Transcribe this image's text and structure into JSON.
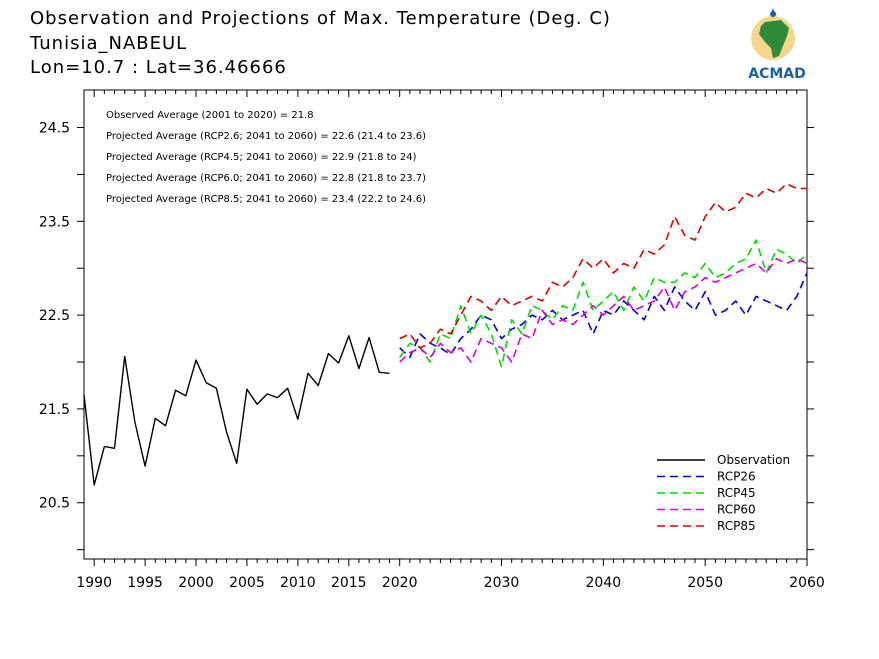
{
  "header": {
    "title_line1": "Observation and Projections of Max. Temperature (Deg. C)",
    "title_line2": "Tunisia_NABEUL",
    "title_line3": "Lon=10.7 : Lat=36.46666"
  },
  "logo": {
    "name": "ACMAD",
    "icon": "africa-logo-icon",
    "color": "#1a5fa8"
  },
  "stats": [
    "Observed Average (2001 to 2020) = 21.8",
    "Projected Average (RCP2.6; 2041 to 2060) = 22.6 (21.4 to 23.6)",
    "Projected Average (RCP4.5; 2041 to 2060) = 22.9 (21.8 to 24)",
    "Projected Average (RCP6.0; 2041 to 2060) = 22.8 (21.8 to 23.7)",
    "Projected Average (RCP8.5; 2041 to 2060) = 23.4 (22.2 to 24.6)"
  ],
  "chart_data": {
    "type": "line",
    "x_ticks": [
      1990,
      1995,
      2000,
      2005,
      2010,
      2015,
      2020,
      2030,
      2040,
      2050,
      2060
    ],
    "y_ticks": [
      20.5,
      21.5,
      22.5,
      23.5,
      24.5
    ],
    "ylim": [
      19.9,
      24.9
    ],
    "grid": false,
    "legend_position": "bottom-right",
    "series": [
      {
        "name": "Observation",
        "color": "#000000",
        "dashed": false,
        "x": [
          1989,
          1990,
          1991,
          1992,
          1993,
          1994,
          1995,
          1996,
          1997,
          1998,
          1999,
          2000,
          2001,
          2002,
          2003,
          2004,
          2005,
          2006,
          2007,
          2008,
          2009,
          2010,
          2011,
          2012,
          2013,
          2014,
          2015,
          2016,
          2017,
          2018,
          2019
        ],
        "y": [
          21.65,
          20.69,
          21.1,
          21.08,
          22.06,
          21.36,
          20.89,
          21.4,
          21.32,
          21.7,
          21.64,
          22.02,
          21.78,
          21.72,
          21.25,
          20.92,
          21.71,
          21.55,
          21.66,
          21.62,
          21.72,
          21.39,
          21.88,
          21.75,
          22.09,
          21.99,
          22.28,
          21.93,
          22.26,
          21.89,
          21.88
        ]
      },
      {
        "name": "RCP26",
        "color": "#0000dd",
        "dashed": true,
        "x": [
          2020,
          2021,
          2022,
          2023,
          2024,
          2025,
          2026,
          2027,
          2028,
          2029,
          2030,
          2031,
          2032,
          2033,
          2034,
          2035,
          2036,
          2037,
          2038,
          2039,
          2040,
          2041,
          2042,
          2043,
          2044,
          2045,
          2046,
          2047,
          2048,
          2049,
          2050,
          2051,
          2052,
          2053,
          2054,
          2055,
          2056,
          2057,
          2058,
          2059,
          2060
        ],
        "y": [
          22.15,
          22.05,
          22.3,
          22.2,
          22.15,
          22.08,
          22.25,
          22.35,
          22.5,
          22.45,
          22.25,
          22.35,
          22.4,
          22.5,
          22.45,
          22.55,
          22.45,
          22.5,
          22.55,
          22.3,
          22.55,
          22.5,
          22.65,
          22.55,
          22.45,
          22.7,
          22.55,
          22.8,
          22.65,
          22.55,
          22.75,
          22.5,
          22.55,
          22.65,
          22.5,
          22.7,
          22.65,
          22.6,
          22.55,
          22.7,
          22.95
        ]
      },
      {
        "name": "RCP45",
        "color": "#00dd00",
        "dashed": true,
        "x": [
          2020,
          2021,
          2022,
          2023,
          2024,
          2025,
          2026,
          2027,
          2028,
          2029,
          2030,
          2031,
          2032,
          2033,
          2034,
          2035,
          2036,
          2037,
          2038,
          2039,
          2040,
          2041,
          2042,
          2043,
          2044,
          2045,
          2046,
          2047,
          2048,
          2049,
          2050,
          2051,
          2052,
          2053,
          2054,
          2055,
          2056,
          2057,
          2058,
          2059,
          2060
        ],
        "y": [
          22.05,
          22.2,
          22.15,
          22.0,
          22.3,
          22.25,
          22.6,
          22.3,
          22.5,
          22.3,
          21.95,
          22.45,
          22.3,
          22.6,
          22.55,
          22.45,
          22.6,
          22.55,
          22.85,
          22.55,
          22.65,
          22.75,
          22.55,
          22.8,
          22.65,
          22.9,
          22.85,
          22.85,
          22.95,
          22.9,
          23.05,
          22.9,
          22.95,
          23.05,
          23.1,
          23.3,
          22.95,
          23.2,
          23.15,
          23.05,
          23.15
        ]
      },
      {
        "name": "RCP60",
        "color": "#dd00dd",
        "dashed": true,
        "x": [
          2020,
          2021,
          2022,
          2023,
          2024,
          2025,
          2026,
          2027,
          2028,
          2029,
          2030,
          2031,
          2032,
          2033,
          2034,
          2035,
          2036,
          2037,
          2038,
          2039,
          2040,
          2041,
          2042,
          2043,
          2044,
          2045,
          2046,
          2047,
          2048,
          2049,
          2050,
          2051,
          2052,
          2053,
          2054,
          2055,
          2056,
          2057,
          2058,
          2059,
          2060
        ],
        "y": [
          22.0,
          22.1,
          22.15,
          22.05,
          22.2,
          22.1,
          22.15,
          22.0,
          22.25,
          22.2,
          22.15,
          22.0,
          22.3,
          22.25,
          22.55,
          22.4,
          22.45,
          22.4,
          22.5,
          22.6,
          22.5,
          22.6,
          22.7,
          22.55,
          22.6,
          22.65,
          22.8,
          22.55,
          22.75,
          22.8,
          22.9,
          22.85,
          22.9,
          22.95,
          23.0,
          23.05,
          22.95,
          23.1,
          23.05,
          23.1,
          23.05
        ]
      },
      {
        "name": "RCP85",
        "color": "#dd0000",
        "dashed": true,
        "x": [
          2020,
          2021,
          2022,
          2023,
          2024,
          2025,
          2026,
          2027,
          2028,
          2029,
          2030,
          2031,
          2032,
          2033,
          2034,
          2035,
          2036,
          2037,
          2038,
          2039,
          2040,
          2041,
          2042,
          2043,
          2044,
          2045,
          2046,
          2047,
          2048,
          2049,
          2050,
          2051,
          2052,
          2053,
          2054,
          2055,
          2056,
          2057,
          2058,
          2059,
          2060
        ],
        "y": [
          22.25,
          22.3,
          22.15,
          22.2,
          22.35,
          22.3,
          22.5,
          22.7,
          22.65,
          22.55,
          22.7,
          22.6,
          22.65,
          22.7,
          22.65,
          22.85,
          22.8,
          22.9,
          23.1,
          23.0,
          23.1,
          22.95,
          23.05,
          23.0,
          23.2,
          23.15,
          23.25,
          23.55,
          23.35,
          23.3,
          23.55,
          23.7,
          23.6,
          23.65,
          23.8,
          23.75,
          23.85,
          23.8,
          23.9,
          23.85,
          23.85
        ]
      }
    ]
  }
}
